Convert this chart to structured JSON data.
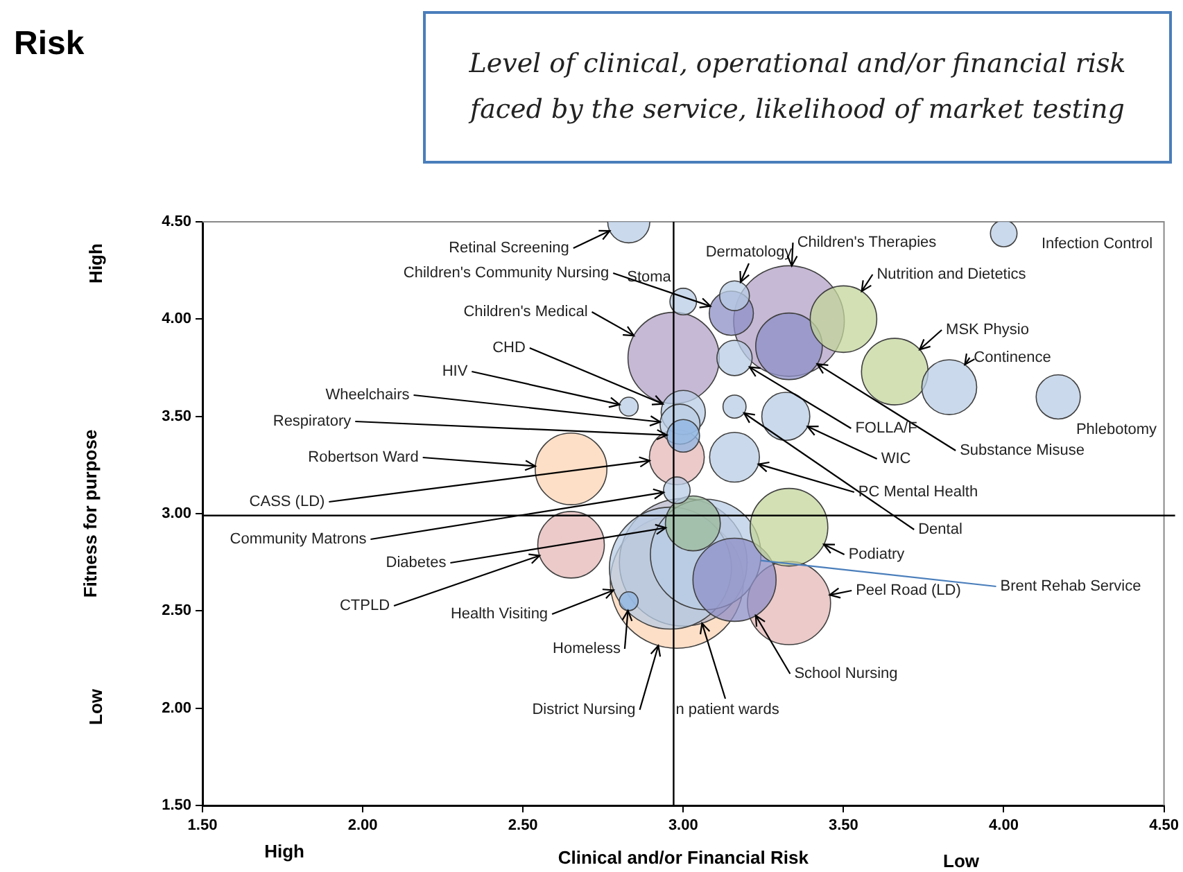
{
  "chart_data": {
    "type": "bubble",
    "title": "Risk",
    "subtitle": "Level of clinical, operational and/or financial risk faced by the service, likelihood of market testing",
    "xlabel": "Clinical and/or Financial Risk",
    "ylabel": "Fitness for purpose",
    "annotations": [
      "High",
      "Low",
      "High",
      "Low"
    ],
    "xlim": [
      1.5,
      4.5
    ],
    "ylim": [
      1.5,
      4.5
    ],
    "xticks": [
      {
        "value": 1.5,
        "label": "1.50"
      },
      {
        "value": 2,
        "label": "2.00"
      },
      {
        "value": 2.5,
        "label": "2.50"
      },
      {
        "value": 3,
        "label": "3.00"
      },
      {
        "value": 3.5,
        "label": "3.50"
      },
      {
        "value": 4,
        "label": "4.00"
      },
      {
        "value": 4.5,
        "label": "4.50"
      }
    ],
    "yticks": [
      {
        "value": 1.5,
        "label": "1.50"
      },
      {
        "value": 2,
        "label": "2.00"
      },
      {
        "value": 2.5,
        "label": "2.50"
      },
      {
        "value": 3,
        "label": "3.00"
      },
      {
        "value": 3.5,
        "label": "3.50"
      },
      {
        "value": 4,
        "label": "4.00"
      },
      {
        "value": 4.5,
        "label": "4.50"
      }
    ],
    "grid": false,
    "legend": false,
    "ref_lines": [
      {
        "axis": "x",
        "value": 2.97,
        "color": "#000000"
      },
      {
        "axis": "y",
        "value": 2.99,
        "color": "#000000"
      }
    ],
    "series": [
      {
        "name": "Retinal Screening",
        "color": "#b9cde5",
        "x": [
          2.83
        ],
        "values": [
          4.5
        ],
        "sizes": [
          0.1
        ]
      },
      {
        "name": "Stoma",
        "color": "#b9cde5",
        "x": [
          3.0
        ],
        "values": [
          4.09
        ],
        "sizes": [
          0.04
        ]
      },
      {
        "name": "Dermatology",
        "color": "#b9cde5",
        "x": [
          3.16
        ],
        "values": [
          4.12
        ],
        "sizes": [
          0.05
        ]
      },
      {
        "name": "Children's Community Nursing",
        "color": "#8e8fc7",
        "x": [
          3.15
        ],
        "values": [
          4.03
        ],
        "sizes": [
          0.11
        ]
      },
      {
        "name": "Children's Therapies",
        "color": "#b3a2c7",
        "x": [
          3.33
        ],
        "values": [
          3.99
        ],
        "sizes": [
          0.69
        ]
      },
      {
        "name": "Nutrition and Dietetics",
        "color": "#c3d69b",
        "x": [
          3.5
        ],
        "values": [
          4.0
        ],
        "sizes": [
          0.25
        ]
      },
      {
        "name": "Substance Misuse",
        "color": "#8e8fc7",
        "x": [
          3.33
        ],
        "values": [
          3.86
        ],
        "sizes": [
          0.25
        ]
      },
      {
        "name": "FOLLA/F",
        "color": "#b9cde5",
        "x": [
          3.16
        ],
        "values": [
          3.8
        ],
        "sizes": [
          0.07
        ]
      },
      {
        "name": "MSK Physio",
        "color": "#c3d69b",
        "x": [
          3.66
        ],
        "values": [
          3.73
        ],
        "sizes": [
          0.25
        ]
      },
      {
        "name": "Continence",
        "color": "#b9cde5",
        "x": [
          3.83
        ],
        "values": [
          3.65
        ],
        "sizes": [
          0.17
        ]
      },
      {
        "name": "Phlebotomy",
        "color": "#b9cde5",
        "x": [
          4.17
        ],
        "values": [
          3.6
        ],
        "sizes": [
          0.11
        ]
      },
      {
        "name": "Infection Control",
        "color": "#b9cde5",
        "x": [
          4.0
        ],
        "values": [
          4.44
        ],
        "sizes": [
          0.04
        ]
      },
      {
        "name": "WIC",
        "color": "#b9cde5",
        "x": [
          3.32
        ],
        "values": [
          3.5
        ],
        "sizes": [
          0.13
        ]
      },
      {
        "name": "Dental",
        "color": "#b9cde5",
        "x": [
          3.16
        ],
        "values": [
          3.55
        ],
        "sizes": [
          0.03
        ]
      },
      {
        "name": "PC Mental Health",
        "color": "#b9cde5",
        "x": [
          3.16
        ],
        "values": [
          3.29
        ],
        "sizes": [
          0.14
        ]
      },
      {
        "name": "Robertson Ward",
        "color": "#fcd5b5",
        "x": [
          2.65
        ],
        "values": [
          3.23
        ],
        "sizes": [
          0.29
        ]
      },
      {
        "name": "HIV",
        "color": "#b9cde5",
        "x": [
          2.83
        ],
        "values": [
          3.55
        ],
        "sizes": [
          0.02
        ]
      },
      {
        "name": "CHD",
        "color": "#b9cde5",
        "x": [
          3.0
        ],
        "values": [
          3.52
        ],
        "sizes": [
          0.11
        ]
      },
      {
        "name": "Wheelchairs",
        "color": "#b9cde5",
        "x": [
          2.99
        ],
        "values": [
          3.46
        ],
        "sizes": [
          0.09
        ]
      },
      {
        "name": "Respiratory",
        "color": "#8eb4e3",
        "x": [
          3.0
        ],
        "values": [
          3.4
        ],
        "sizes": [
          0.06
        ]
      },
      {
        "name": "Children's Medical",
        "color": "#b3a2c7",
        "x": [
          2.97
        ],
        "values": [
          3.8
        ],
        "sizes": [
          0.47
        ]
      },
      {
        "name": "CASS (LD)",
        "color": "#e6b9b8",
        "x": [
          2.98
        ],
        "values": [
          3.29
        ],
        "sizes": [
          0.17
        ]
      },
      {
        "name": "Community Matrons",
        "color": "#b9cde5",
        "x": [
          2.98
        ],
        "values": [
          3.12
        ],
        "sizes": [
          0.04
        ]
      },
      {
        "name": "Diabetes",
        "color": "#9bbb9b",
        "x": [
          3.03
        ],
        "values": [
          2.95
        ],
        "sizes": [
          0.17
        ]
      },
      {
        "name": "CTPLD",
        "color": "#e6b9b8",
        "x": [
          2.65
        ],
        "values": [
          2.84
        ],
        "sizes": [
          0.25
        ]
      },
      {
        "name": "Health Visiting",
        "color": "#b9cde5",
        "x": [
          2.96
        ],
        "values": [
          2.72
        ],
        "sizes": [
          0.84
        ]
      },
      {
        "name": "Homeless",
        "color": "#8eb4e3",
        "x": [
          2.83
        ],
        "values": [
          2.55
        ],
        "sizes": [
          0.02
        ]
      },
      {
        "name": "District Nursing",
        "color": "#fcd5b5",
        "x": [
          2.98
        ],
        "values": [
          2.65
        ],
        "sizes": [
          1
        ]
      },
      {
        "name": "In patient wards",
        "color": "#b8b8cc",
        "x": [
          3.0
        ],
        "values": [
          2.75
        ],
        "sizes": [
          0.92
        ]
      },
      {
        "name": "School Nursing",
        "color": "#8e8fc7",
        "x": [
          3.16
        ],
        "values": [
          2.66
        ],
        "sizes": [
          0.39
        ]
      },
      {
        "name": "Brent Rehab Service",
        "color": "#b9cde5",
        "x": [
          3.07
        ],
        "values": [
          2.79
        ],
        "sizes": [
          0.69
        ]
      },
      {
        "name": "Peel Road (LD)",
        "color": "#e6b9b8",
        "x": [
          3.33
        ],
        "values": [
          2.54
        ],
        "sizes": [
          0.39
        ]
      },
      {
        "name": "Podiatry",
        "color": "#c3d69b",
        "x": [
          3.33
        ],
        "values": [
          2.93
        ],
        "sizes": [
          0.34
        ]
      }
    ]
  }
}
